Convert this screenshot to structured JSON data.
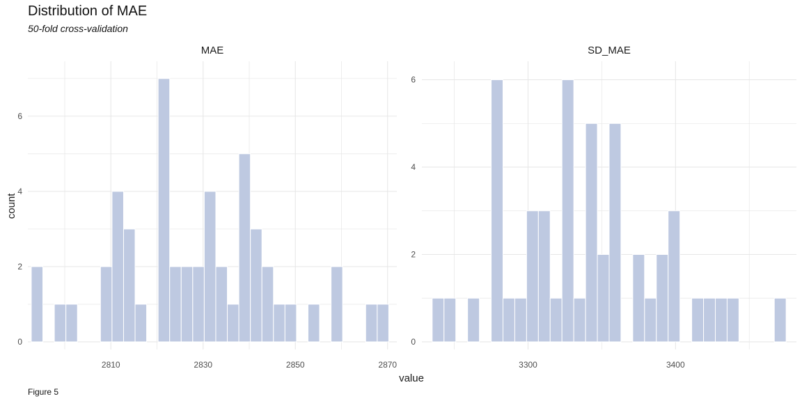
{
  "title": "Distribution of MAE",
  "subtitle": "50-fold cross-validation",
  "caption": "Figure 5",
  "colors": {
    "bar": "#bec9e1",
    "bar_outline": "#ffffff",
    "grid": "#e6e6e6"
  },
  "chart_data": [
    {
      "type": "bar",
      "panel": "MAE",
      "xlabel": "value",
      "ylabel": "count",
      "bin_width": 2.5,
      "bin_centers": [
        2794,
        2799,
        2801.5,
        2809,
        2811.5,
        2814,
        2816.5,
        2821.5,
        2824,
        2826.5,
        2829,
        2831.5,
        2834,
        2836.5,
        2839,
        2841.5,
        2844,
        2846.5,
        2849,
        2854,
        2859,
        2866.5,
        2869
      ],
      "counts": [
        2,
        1,
        1,
        2,
        4,
        3,
        1,
        7,
        2,
        2,
        2,
        4,
        2,
        1,
        5,
        3,
        2,
        1,
        1,
        1,
        2,
        1,
        1
      ],
      "xlim": [
        2792,
        2872
      ],
      "ylim": [
        0,
        7.2
      ],
      "x_ticks": [
        2810,
        2830,
        2850,
        2870
      ],
      "y_ticks": [
        0,
        2,
        4,
        6
      ],
      "grid": true
    },
    {
      "type": "bar",
      "panel": "SD_MAE",
      "xlabel": "value",
      "ylabel": "count",
      "bin_width": 8,
      "bin_centers": [
        3239,
        3247,
        3263,
        3279,
        3287,
        3295,
        3303,
        3311,
        3319,
        3327,
        3335,
        3343,
        3351,
        3359,
        3375,
        3383,
        3391,
        3399,
        3415,
        3423,
        3431,
        3439,
        3471
      ],
      "counts": [
        1,
        1,
        1,
        6,
        1,
        1,
        3,
        3,
        1,
        6,
        1,
        5,
        2,
        5,
        2,
        1,
        2,
        3,
        1,
        1,
        1,
        1,
        1
      ],
      "xlim": [
        3228,
        3482
      ],
      "ylim": [
        0,
        6.2
      ],
      "x_ticks": [
        3300,
        3400
      ],
      "y_ticks": [
        0,
        2,
        4,
        6
      ],
      "grid": true
    }
  ]
}
